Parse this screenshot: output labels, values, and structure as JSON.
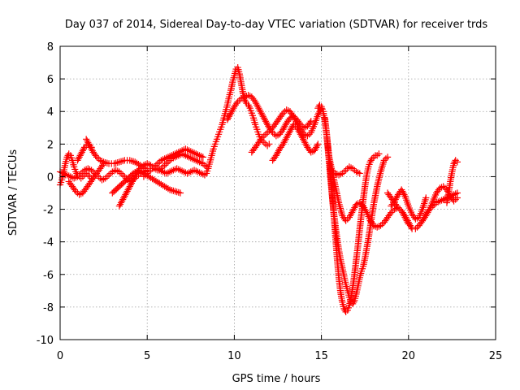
{
  "chart_data": {
    "type": "scatter",
    "title": "Day 037 of 2014, Sidereal Day-to-day VTEC variation (SDTVAR) for receiver trds",
    "xlabel": "GPS time / hours",
    "ylabel": "SDTVAR / TECUs",
    "xlim": [
      0,
      25
    ],
    "ylim": [
      -10,
      8
    ],
    "xticks": [
      0,
      5,
      10,
      15,
      20,
      25
    ],
    "yticks": [
      -10,
      -8,
      -6,
      -4,
      -2,
      0,
      2,
      4,
      6,
      8
    ],
    "xtick_labels": [
      "0",
      "5",
      "10",
      "15",
      "20",
      "25"
    ],
    "ytick_labels": [
      "-10",
      "-8",
      "-6",
      "-4",
      "-2",
      "0",
      "2",
      "4",
      "6",
      "8"
    ],
    "grid": true,
    "marker": "plus",
    "color": "#ff0000",
    "series": [
      {
        "x": [
          0.0,
          0.1,
          0.2,
          0.3,
          0.4,
          0.5,
          0.6,
          0.7,
          0.8,
          0.9,
          1.0,
          1.1,
          1.2,
          1.3,
          1.4,
          1.5,
          1.6,
          1.7,
          1.8,
          1.9
        ],
        "y": [
          -0.5,
          -0.2,
          0.3,
          0.8,
          1.2,
          1.4,
          1.3,
          1.0,
          0.6,
          0.3,
          0.1,
          0.0,
          -0.1,
          0.0,
          0.1,
          0.2,
          0.1,
          0.0,
          -0.1,
          0.0
        ]
      },
      {
        "x": [
          0.0,
          0.2,
          0.4,
          0.6,
          0.8,
          1.0,
          1.2,
          1.4,
          1.6,
          1.8,
          2.0,
          2.2,
          2.4,
          2.6,
          2.8,
          3.0,
          3.2,
          3.4,
          3.6,
          3.8,
          4.0,
          4.2,
          4.4,
          4.6,
          4.8,
          5.0
        ],
        "y": [
          0.3,
          0.2,
          0.1,
          0.0,
          -0.1,
          0.0,
          0.2,
          0.4,
          0.5,
          0.4,
          0.2,
          0.0,
          -0.2,
          -0.1,
          0.1,
          0.3,
          0.4,
          0.3,
          0.1,
          -0.1,
          -0.3,
          -0.2,
          0.0,
          0.2,
          0.3,
          0.4
        ]
      },
      {
        "x": [
          0.5,
          0.7,
          0.9,
          1.1,
          1.3,
          1.5,
          1.7,
          1.9,
          2.1,
          2.3,
          2.5
        ],
        "y": [
          -0.3,
          -0.6,
          -0.9,
          -1.1,
          -1.0,
          -0.7,
          -0.4,
          -0.1,
          0.2,
          0.5,
          0.8
        ]
      },
      {
        "x": [
          1.5,
          1.7,
          1.9,
          2.1,
          2.3,
          2.5,
          2.8,
          3.1,
          3.4,
          3.7,
          4.0,
          4.3,
          4.6,
          4.9
        ],
        "y": [
          2.3,
          1.9,
          1.5,
          1.2,
          1.0,
          0.9,
          0.8,
          0.8,
          0.9,
          1.0,
          1.0,
          0.9,
          0.7,
          0.5
        ]
      },
      {
        "x": [
          1.0,
          1.2,
          1.4,
          1.6,
          1.8
        ],
        "y": [
          1.0,
          1.4,
          1.8,
          2.0,
          1.8
        ]
      },
      {
        "x": [
          3.4,
          3.6,
          3.8,
          4.0,
          4.2,
          4.4,
          4.6,
          4.8,
          5.0,
          5.2,
          5.4,
          5.6,
          5.8,
          6.0,
          6.2,
          6.4,
          6.6,
          6.8,
          7.0,
          7.2,
          7.4,
          7.6,
          7.8,
          8.0,
          8.2,
          8.4
        ],
        "y": [
          -1.8,
          -1.4,
          -1.0,
          -0.6,
          -0.2,
          0.2,
          0.5,
          0.7,
          0.8,
          0.7,
          0.5,
          0.4,
          0.5,
          0.7,
          0.9,
          1.1,
          1.2,
          1.3,
          1.4,
          1.3,
          1.2,
          1.1,
          1.0,
          0.9,
          0.8,
          0.6
        ]
      },
      {
        "x": [
          3.0,
          3.3,
          3.6,
          3.9,
          4.2,
          4.5,
          4.8,
          5.1,
          5.4,
          5.7,
          6.0,
          6.3,
          6.6,
          6.9
        ],
        "y": [
          -1.0,
          -0.7,
          -0.4,
          -0.1,
          0.2,
          0.4,
          0.2,
          0.0,
          -0.2,
          -0.4,
          -0.6,
          -0.8,
          -0.9,
          -1.0
        ]
      },
      {
        "x": [
          4.8,
          5.0,
          5.2,
          5.4,
          5.6,
          5.8,
          6.0,
          6.2,
          6.4,
          6.6,
          6.8,
          7.0,
          7.2,
          7.4,
          7.6,
          7.8,
          8.0,
          8.2
        ],
        "y": [
          0.0,
          0.2,
          0.4,
          0.6,
          0.8,
          1.0,
          1.1,
          1.2,
          1.3,
          1.4,
          1.5,
          1.6,
          1.7,
          1.6,
          1.5,
          1.4,
          1.3,
          1.2
        ]
      },
      {
        "x": [
          5.5,
          5.7,
          5.9,
          6.1,
          6.3,
          6.5,
          6.7,
          6.9,
          7.1,
          7.3,
          7.5,
          7.7,
          7.9,
          8.1,
          8.3
        ],
        "y": [
          0.6,
          0.4,
          0.3,
          0.2,
          0.3,
          0.4,
          0.5,
          0.4,
          0.3,
          0.2,
          0.3,
          0.4,
          0.3,
          0.2,
          0.1
        ]
      },
      {
        "x": [
          8.4,
          8.5,
          8.6,
          8.7,
          8.8,
          8.9,
          9.0,
          9.1,
          9.2,
          9.3,
          9.4,
          9.5,
          9.6,
          9.7,
          9.8,
          9.9,
          10.0,
          10.1,
          10.2,
          10.3,
          10.4,
          10.5,
          10.6,
          10.7,
          10.8,
          10.9,
          11.0,
          11.1,
          11.2,
          11.3,
          11.4,
          11.5,
          11.6,
          11.7,
          11.8,
          11.9,
          12.0
        ],
        "y": [
          0.2,
          0.5,
          0.9,
          1.3,
          1.7,
          2.0,
          2.3,
          2.6,
          2.9,
          3.2,
          3.6,
          4.0,
          4.4,
          4.9,
          5.3,
          5.8,
          6.2,
          6.6,
          6.7,
          6.3,
          5.7,
          5.1,
          4.7,
          4.5,
          4.4,
          4.2,
          3.9,
          3.6,
          3.2,
          2.9,
          2.6,
          2.3,
          2.2,
          2.1,
          2.0,
          1.9,
          2.0
        ]
      },
      {
        "x": [
          9.6,
          9.8,
          10.0,
          10.2,
          10.4,
          10.6,
          10.8,
          11.0,
          11.2,
          11.4,
          11.6,
          11.8,
          12.0,
          12.2,
          12.4,
          12.6,
          12.8,
          13.0,
          13.2,
          13.4,
          13.6,
          13.8,
          14.0,
          14.2,
          14.4
        ],
        "y": [
          3.5,
          3.9,
          4.3,
          4.6,
          4.8,
          4.9,
          5.0,
          4.9,
          4.6,
          4.2,
          3.8,
          3.4,
          3.0,
          2.7,
          2.5,
          2.6,
          2.9,
          3.3,
          3.6,
          3.7,
          3.5,
          3.2,
          3.0,
          3.1,
          3.4
        ]
      },
      {
        "x": [
          11.0,
          11.2,
          11.4,
          11.6,
          11.8,
          12.0,
          12.2,
          12.4,
          12.6,
          12.8,
          13.0,
          13.2,
          13.4,
          13.6,
          13.8,
          14.0,
          14.2,
          14.4,
          14.6,
          14.8,
          15.0
        ],
        "y": [
          1.5,
          1.8,
          2.1,
          2.4,
          2.6,
          2.8,
          3.0,
          3.3,
          3.6,
          3.9,
          4.1,
          4.0,
          3.7,
          3.3,
          2.9,
          2.6,
          2.5,
          2.7,
          3.2,
          3.8,
          4.2
        ]
      },
      {
        "x": [
          12.2,
          12.4,
          12.6,
          12.8,
          13.0,
          13.2,
          13.4,
          13.6,
          13.8,
          14.0,
          14.2,
          14.4,
          14.6,
          14.8
        ],
        "y": [
          1.0,
          1.3,
          1.7,
          2.0,
          2.4,
          2.8,
          3.2,
          3.0,
          2.6,
          2.2,
          1.8,
          1.5,
          1.6,
          2.0
        ]
      },
      {
        "x": [
          14.8,
          14.9,
          15.0,
          15.1,
          15.2,
          15.3,
          15.4,
          15.5,
          15.6,
          15.7,
          15.8,
          15.9,
          16.0,
          16.1,
          16.2,
          16.3,
          16.4,
          16.5,
          16.6,
          16.7,
          16.8,
          16.9,
          17.0,
          17.1,
          17.2,
          17.3,
          17.4,
          17.5,
          17.6,
          17.7,
          17.8,
          17.9,
          18.0,
          18.1,
          18.2,
          18.3
        ],
        "y": [
          4.2,
          4.4,
          4.3,
          4.0,
          3.4,
          2.6,
          1.6,
          0.5,
          -0.8,
          -2.2,
          -3.6,
          -5.0,
          -6.2,
          -7.1,
          -7.7,
          -8.1,
          -8.3,
          -8.2,
          -7.9,
          -7.4,
          -6.8,
          -6.0,
          -5.1,
          -4.2,
          -3.2,
          -2.3,
          -1.4,
          -0.6,
          0.1,
          0.6,
          0.9,
          1.1,
          1.2,
          1.3,
          1.3,
          1.4
        ]
      },
      {
        "x": [
          15.2,
          15.3,
          15.4,
          15.5,
          15.6,
          15.7,
          15.8,
          15.9,
          16.0,
          16.1,
          16.2,
          16.3,
          16.4,
          16.5,
          16.6,
          16.7,
          16.8,
          16.9,
          17.0,
          17.1,
          17.2,
          17.3,
          17.4,
          17.5,
          17.6,
          17.7,
          17.8,
          17.9,
          18.0,
          18.2,
          18.4,
          18.6,
          18.8
        ],
        "y": [
          3.6,
          2.6,
          1.4,
          0.2,
          -1.0,
          -2.1,
          -3.0,
          -3.8,
          -4.5,
          -5.1,
          -5.6,
          -6.1,
          -6.6,
          -7.0,
          -7.4,
          -7.7,
          -7.8,
          -7.6,
          -7.2,
          -6.7,
          -6.2,
          -5.8,
          -5.5,
          -5.0,
          -4.4,
          -3.8,
          -3.1,
          -2.4,
          -1.7,
          -0.6,
          0.3,
          1.0,
          1.2
        ]
      },
      {
        "x": [
          15.4,
          15.6,
          15.8,
          16.0,
          16.2,
          16.4,
          16.6,
          16.8,
          17.0,
          17.2,
          17.4,
          17.6,
          17.8,
          18.0,
          18.2,
          18.4,
          18.6,
          18.8,
          19.0,
          19.2,
          19.4,
          19.6,
          19.8,
          20.0
        ],
        "y": [
          1.4,
          0.4,
          -0.6,
          -1.6,
          -2.4,
          -2.7,
          -2.5,
          -2.1,
          -1.7,
          -1.6,
          -1.8,
          -2.2,
          -2.7,
          -3.0,
          -3.1,
          -3.0,
          -2.8,
          -2.5,
          -2.2,
          -2.0,
          -1.9,
          -2.1,
          -2.5,
          -2.9
        ]
      },
      {
        "x": [
          15.6,
          15.8,
          16.0,
          16.2,
          16.4,
          16.6,
          16.8,
          17.0,
          17.2
        ],
        "y": [
          0.4,
          0.2,
          0.1,
          0.2,
          0.4,
          0.6,
          0.5,
          0.3,
          0.2
        ]
      },
      {
        "x": [
          18.8,
          19.0,
          19.2,
          19.4,
          19.6,
          19.8,
          20.0,
          20.2,
          20.4,
          20.6,
          20.8,
          21.0,
          21.2,
          21.4,
          21.6,
          21.8,
          22.0,
          22.2,
          22.4,
          22.6,
          22.8
        ],
        "y": [
          -1.0,
          -1.3,
          -1.6,
          -1.9,
          -2.1,
          -2.4,
          -2.8,
          -3.2,
          -3.2,
          -3.0,
          -2.7,
          -2.3,
          -2.0,
          -1.8,
          -1.6,
          -1.5,
          -1.4,
          -1.3,
          -1.2,
          -1.1,
          -1.0
        ]
      },
      {
        "x": [
          19.0,
          19.2,
          19.4,
          19.6,
          19.8,
          20.0,
          20.2,
          20.4,
          20.6,
          20.8,
          21.0
        ],
        "y": [
          -1.8,
          -1.5,
          -1.1,
          -0.8,
          -1.2,
          -1.8,
          -2.3,
          -2.6,
          -2.5,
          -2.0,
          -1.3
        ]
      },
      {
        "x": [
          20.8,
          21.0,
          21.2,
          21.4,
          21.6,
          21.8,
          22.0,
          22.2,
          22.4,
          22.6,
          22.8
        ],
        "y": [
          -2.7,
          -2.4,
          -2.0,
          -1.5,
          -1.0,
          -0.7,
          -0.6,
          -0.8,
          -1.2,
          -1.5,
          -1.3
        ]
      },
      {
        "x": [
          22.2,
          22.3,
          22.4,
          22.5,
          22.6,
          22.7,
          22.8
        ],
        "y": [
          -1.6,
          -1.0,
          -0.3,
          0.3,
          0.8,
          1.0,
          0.9
        ]
      }
    ]
  }
}
